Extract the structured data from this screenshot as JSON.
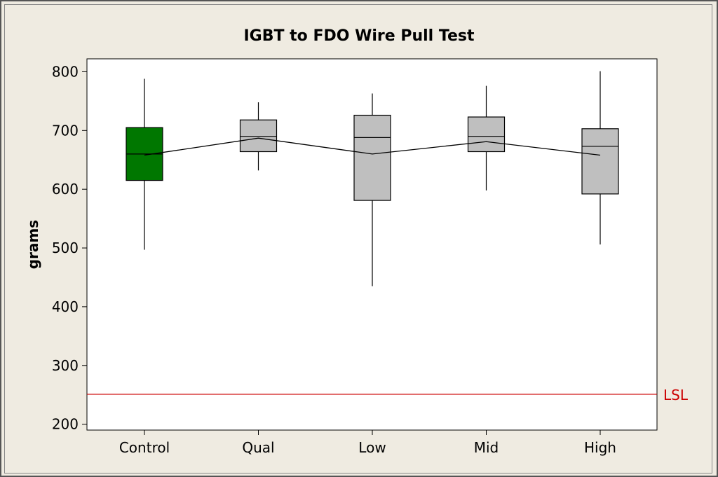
{
  "chart_data": {
    "type": "boxplot",
    "title": "IGBT to FDO Wire Pull Test",
    "xlabel": "",
    "ylabel": "grams",
    "ylim": [
      190,
      822
    ],
    "yticks": [
      200,
      300,
      400,
      500,
      600,
      700,
      800
    ],
    "grid": false,
    "categories": [
      "Control",
      "Qual",
      "Low",
      "Mid",
      "High"
    ],
    "boxes": [
      {
        "category": "Control",
        "min": 497,
        "q1": 615,
        "median": 660,
        "q3": 705,
        "max": 788,
        "fill": "#007700"
      },
      {
        "category": "Qual",
        "min": 632,
        "q1": 664,
        "median": 690,
        "q3": 718,
        "max": 748,
        "fill": "#bfbfbf"
      },
      {
        "category": "Low",
        "min": 435,
        "q1": 581,
        "median": 688,
        "q3": 726,
        "max": 763,
        "fill": "#bfbfbf"
      },
      {
        "category": "Mid",
        "min": 598,
        "q1": 664,
        "median": 690,
        "q3": 723,
        "max": 776,
        "fill": "#bfbfbf"
      },
      {
        "category": "High",
        "min": 506,
        "q1": 592,
        "median": 673,
        "q3": 703,
        "max": 801,
        "fill": "#bfbfbf"
      }
    ],
    "mean_line": {
      "values": [
        658,
        687,
        660,
        681,
        658
      ],
      "color": "#000000"
    },
    "reference_line": {
      "label": "LSL",
      "value": 251,
      "color": "#cc0000"
    }
  }
}
